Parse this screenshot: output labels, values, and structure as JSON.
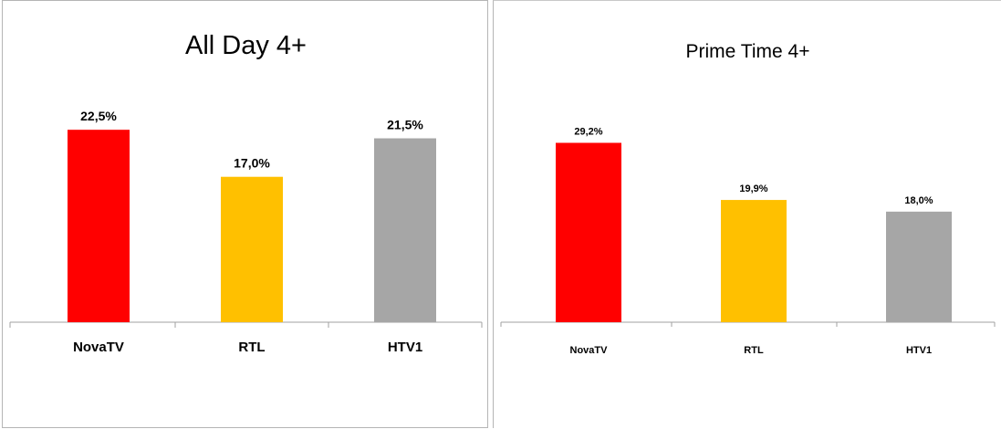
{
  "chart_data": [
    {
      "type": "bar",
      "title": "All Day 4+",
      "categories": [
        "NovaTV",
        "RTL",
        "HTV1"
      ],
      "values": [
        22.5,
        17.0,
        21.5
      ],
      "value_labels": [
        "22,5%",
        "17,0%",
        "21,5%"
      ],
      "colors": [
        "#ff0000",
        "#ffc000",
        "#a6a6a6"
      ],
      "xlabel": "",
      "ylabel": "",
      "grid": false,
      "legend": "none"
    },
    {
      "type": "bar",
      "title": "Prime Time 4+",
      "categories": [
        "NovaTV",
        "RTL",
        "HTV1"
      ],
      "values": [
        29.2,
        19.9,
        18.0
      ],
      "value_labels": [
        "29,2%",
        "19,9%",
        "18,0%"
      ],
      "colors": [
        "#ff0000",
        "#ffc000",
        "#a6a6a6"
      ],
      "xlabel": "",
      "ylabel": "",
      "grid": false,
      "legend": "none"
    }
  ]
}
